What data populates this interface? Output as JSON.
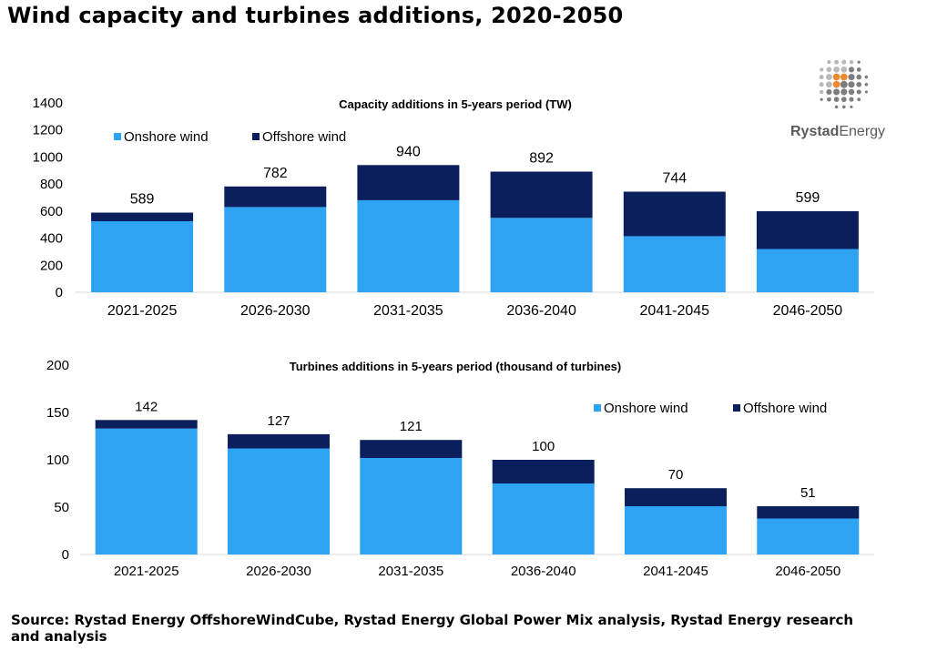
{
  "title": "Wind capacity and turbines additions, 2020-2050",
  "logo": {
    "name_bold": "Rystad",
    "name_light": "Energy",
    "icon": "rystad-globe-icon"
  },
  "source": "Source: Rystad Energy OffshoreWindCube, Rystad Energy Global Power Mix analysis, Rystad Energy research and analysis",
  "colors": {
    "onshore": "#2ea3f2",
    "offshore": "#0b1f5c"
  },
  "chart_data": [
    {
      "type": "bar",
      "stacked": true,
      "title": "Capacity additions in 5-years period (TW)",
      "categories": [
        "2021-2025",
        "2026-2030",
        "2031-2035",
        "2036-2040",
        "2041-2045",
        "2046-2050"
      ],
      "series": [
        {
          "name": "Onshore wind",
          "values": [
            525,
            630,
            680,
            550,
            415,
            320
          ]
        },
        {
          "name": "Offshore wind",
          "values": [
            64,
            152,
            260,
            342,
            329,
            279
          ]
        }
      ],
      "totals": [
        "589",
        "782",
        "940",
        "892",
        "744",
        "599"
      ],
      "ylim": [
        0,
        1400
      ],
      "yticks": [
        0,
        200,
        400,
        600,
        800,
        1000,
        1200,
        1400
      ],
      "legend": "top-left",
      "grid": false
    },
    {
      "type": "bar",
      "stacked": true,
      "title": "Turbines additions in 5-years period (thousand of turbines)",
      "categories": [
        "2021-2025",
        "2026-2030",
        "2031-2035",
        "2036-2040",
        "2041-2045",
        "2046-2050"
      ],
      "series": [
        {
          "name": "Onshore wind",
          "values": [
            133,
            112,
            102,
            75,
            51,
            38
          ]
        },
        {
          "name": "Offshore wind",
          "values": [
            9,
            15,
            19,
            25,
            19,
            13
          ]
        }
      ],
      "totals": [
        "142",
        "127",
        "121",
        "100",
        "70",
        "51"
      ],
      "ylim": [
        0,
        200
      ],
      "yticks": [
        0,
        50,
        100,
        150,
        200
      ],
      "legend": "top-right",
      "grid": false
    }
  ]
}
